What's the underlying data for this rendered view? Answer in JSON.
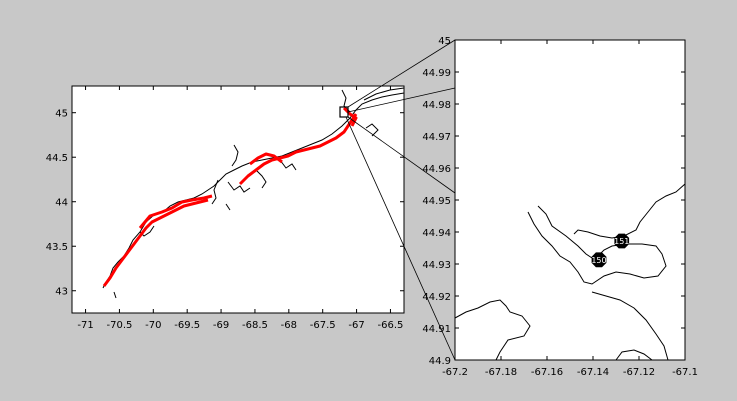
{
  "chart_data": [
    {
      "type": "map",
      "title": "",
      "xlim": [
        -71.2,
        -66.3
      ],
      "ylim": [
        42.75,
        45.3
      ],
      "xticks": [
        -71,
        -70.5,
        -70,
        -69.5,
        -69,
        -68.5,
        -68,
        -67.5,
        -67,
        -66.5
      ],
      "yticks": [
        43,
        43.5,
        44,
        44.5,
        45
      ],
      "xtick_labels": [
        "-71",
        "-70.5",
        "-70",
        "-69.5",
        "-69",
        "-68.5",
        "-68",
        "-67.5",
        "-67",
        "-66.5"
      ],
      "ytick_labels": [
        "43",
        "43.5",
        "44",
        "44.5",
        "45"
      ],
      "coastline_color": "#000000",
      "highlight_color": "#ff0000",
      "highlight_box": {
        "x": [
          -67.2,
          -67.1
        ],
        "y": [
          44.9,
          45.0
        ]
      }
    },
    {
      "type": "map",
      "title": "",
      "xlim": [
        -67.2,
        -67.1
      ],
      "ylim": [
        44.9,
        45.0
      ],
      "xticks": [
        -67.2,
        -67.18,
        -67.16,
        -67.14,
        -67.12,
        -67.1
      ],
      "yticks": [
        44.9,
        44.91,
        44.92,
        44.93,
        44.94,
        44.95,
        44.96,
        44.97,
        44.98,
        44.99,
        45
      ],
      "xtick_labels": [
        "-67.2",
        "-67.18",
        "-67.16",
        "-67.14",
        "-67.12",
        "-67.1"
      ],
      "ytick_labels": [
        "44.9",
        "44.91",
        "44.92",
        "44.93",
        "44.94",
        "44.95",
        "44.96",
        "44.97",
        "44.98",
        "44.99",
        "45"
      ],
      "stations": [
        {
          "label": "150",
          "x": -67.1374,
          "y": 44.9313
        },
        {
          "label": "151",
          "x": -67.1275,
          "y": 44.9372
        }
      ],
      "marker_color": "#000000",
      "marker_text_color": "#ffffff"
    }
  ]
}
